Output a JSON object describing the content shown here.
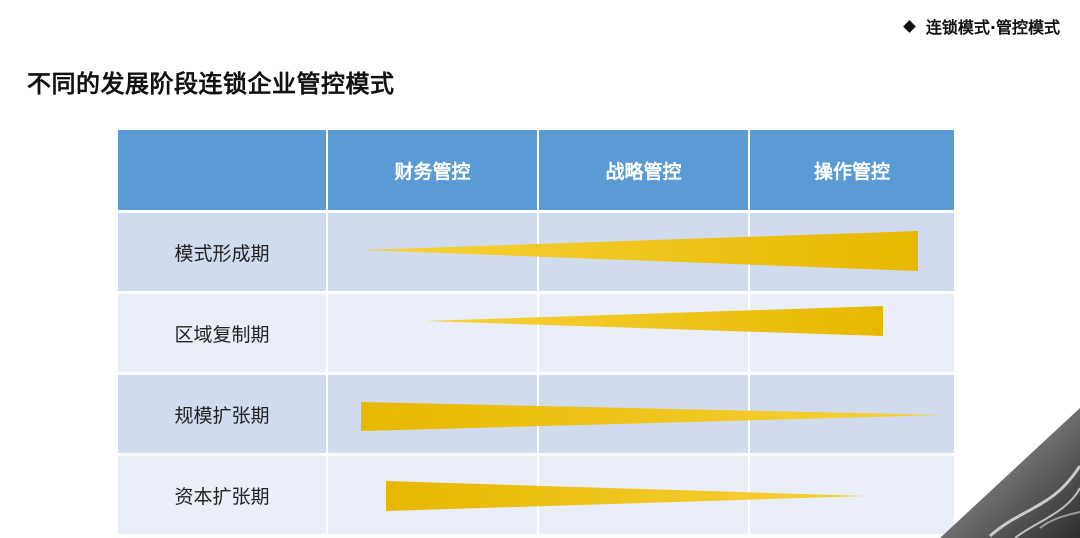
{
  "section_tag": "连锁模式·管控模式",
  "page_title": "不同的发展阶段连锁企业管控模式",
  "table": {
    "columns": [
      "财务管控",
      "战略管控",
      "操作管控"
    ],
    "rows": [
      {
        "label": "模式形成期"
      },
      {
        "label": "区域复制期"
      },
      {
        "label": "规模扩张期"
      },
      {
        "label": "资本扩张期"
      }
    ]
  },
  "colors": {
    "header_blue": "#5b9bd5",
    "row_dark": "#d0dcee",
    "row_light": "#e9eef8",
    "wedge_gold": "#f2c200"
  },
  "icons": {
    "tag_marker": "diamond-icon",
    "corner_decoration": "wave-photo-corner"
  }
}
